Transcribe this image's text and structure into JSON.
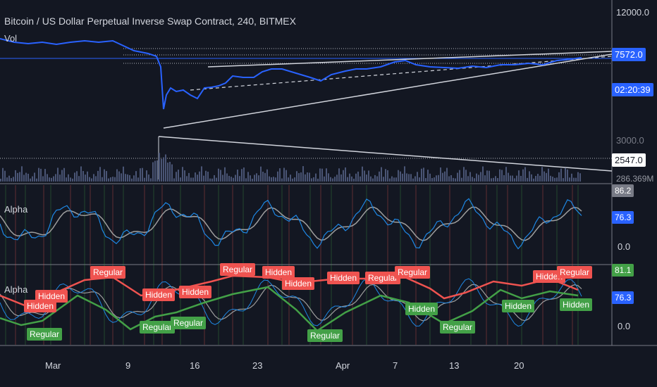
{
  "header": {
    "symbol_title": "Bitcoin / US Dollar Perpetual Inverse Swap Contract, 240, BITMEX",
    "volume_label": "Vol"
  },
  "panes": {
    "alpha1_label": "Alpha",
    "alpha2_label": "Alpha"
  },
  "price_axis": {
    "top": "12000.0",
    "last_price": "7572.0",
    "countdown": "02:20:39",
    "mid": "3000.0",
    "low_marker": "2547.0",
    "volume_tag": "286.369M"
  },
  "alpha1_axis": {
    "top_tag": "86.2",
    "value_tag": "76.3",
    "zero": "0.0"
  },
  "alpha2_axis": {
    "top_tag": "81.1",
    "value_tag": "76.3",
    "zero": "0.0"
  },
  "time_axis": [
    "Mar",
    "9",
    "16",
    "23",
    "Apr",
    "7",
    "13",
    "20"
  ],
  "divergence_labels": {
    "regular": "Regular",
    "hidden": "Hidden"
  },
  "colors": {
    "background": "#131722",
    "price_up": "#2962ff",
    "price_down": "#d1d4dc",
    "bear_div": "#ef5350",
    "bull_div": "#43a047",
    "alpha_line": "#1e88e5",
    "signal_line": "#9e9e9e"
  }
}
